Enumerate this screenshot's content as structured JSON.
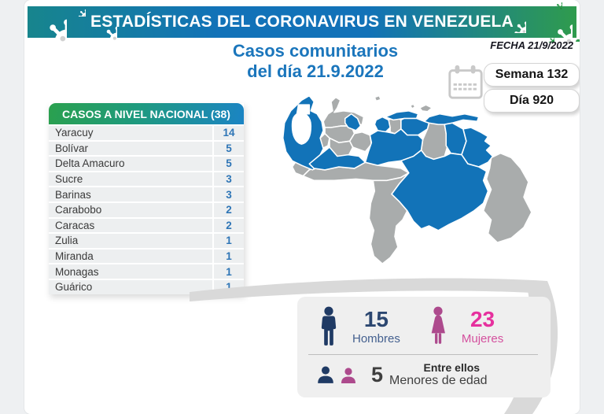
{
  "banner": {
    "title": "ESTADÍSTICAS DEL CORONAVIRUS EN VENEZUELA"
  },
  "date": {
    "label": "FECHA 21/9/2022"
  },
  "title": {
    "line1": "Casos comunitarios",
    "line2": "del día 21.9.2022"
  },
  "badges": {
    "week": "Semana 132",
    "day": "Día 920"
  },
  "table": {
    "header": "CASOS A NIVEL NACIONAL (38)",
    "rows": [
      {
        "state": "Yaracuy",
        "cases": "14"
      },
      {
        "state": "Bolívar",
        "cases": "5"
      },
      {
        "state": "Delta Amacuro",
        "cases": "5"
      },
      {
        "state": "Sucre",
        "cases": "3"
      },
      {
        "state": "Barinas",
        "cases": "3"
      },
      {
        "state": "Carabobo",
        "cases": "2"
      },
      {
        "state": "Caracas",
        "cases": "2"
      },
      {
        "state": "Zulia",
        "cases": "1"
      },
      {
        "state": "Miranda",
        "cases": "1"
      },
      {
        "state": "Monagas",
        "cases": "1"
      },
      {
        "state": "Guárico",
        "cases": "1"
      }
    ]
  },
  "stats": {
    "men_value": "15",
    "men_label": "Hombres",
    "women_value": "23",
    "women_label": "Mujeres",
    "minors_intro": "Entre ellos",
    "minors_value": "5",
    "minors_label": "Menores de edad"
  },
  "map": {
    "highlighted_states": [
      "Zulia",
      "Yaracuy",
      "Carabobo",
      "Caracas",
      "Miranda",
      "Guárico",
      "Barinas",
      "Bolívar",
      "Monagas",
      "Sucre",
      "Delta Amacuro"
    ],
    "highlight_color": "#1273b8",
    "muted_color": "#a9acac"
  },
  "colors": {
    "banner_teal": "#17858d",
    "banner_blue": "#1272b8",
    "banner_green": "#2f9b4d",
    "title_blue": "#1b76bc",
    "table_number_blue": "#2e75b6",
    "men_navy": "#1f3a64",
    "women_pink_icon": "#ad4a8d",
    "women_pink_text": "#e6309e"
  },
  "chart_data": {
    "type": "table",
    "title": "Casos comunitarios del día 21.9.2022",
    "total": 38,
    "categories": [
      "Yaracuy",
      "Bolívar",
      "Delta Amacuro",
      "Sucre",
      "Barinas",
      "Carabobo",
      "Caracas",
      "Zulia",
      "Miranda",
      "Monagas",
      "Guárico"
    ],
    "values": [
      14,
      5,
      5,
      3,
      3,
      2,
      2,
      1,
      1,
      1,
      1
    ],
    "series": [
      {
        "name": "Hombres",
        "values": [
          15
        ]
      },
      {
        "name": "Mujeres",
        "values": [
          23
        ]
      },
      {
        "name": "Menores de edad",
        "values": [
          5
        ]
      }
    ],
    "week": 132,
    "day": 920,
    "date": "21/9/2022"
  }
}
